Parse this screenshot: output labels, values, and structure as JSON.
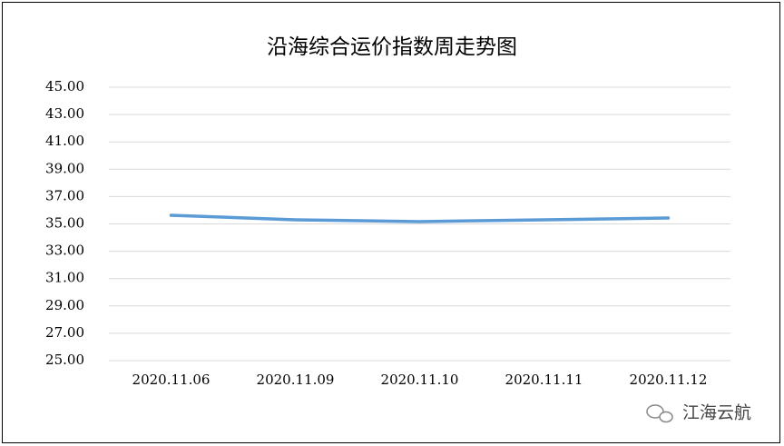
{
  "chart_data": {
    "type": "line",
    "title": "沿海综合运价指数周走势图",
    "categories": [
      "2020.11.06",
      "2020.11.09",
      "2020.11.10",
      "2020.11.11",
      "2020.11.12"
    ],
    "series": [
      {
        "color": "#5b9bd5",
        "values": [
          35.63,
          35.3,
          35.17,
          35.3,
          35.43
        ]
      }
    ],
    "ylim": [
      25,
      45
    ],
    "yticks": [
      {
        "value": 25,
        "label": "25.00"
      },
      {
        "value": 27,
        "label": "27.00"
      },
      {
        "value": 29,
        "label": "29.00"
      },
      {
        "value": 31,
        "label": "31.00"
      },
      {
        "value": 33,
        "label": "33.00"
      },
      {
        "value": 35,
        "label": "35.00"
      },
      {
        "value": 37,
        "label": "37.00"
      },
      {
        "value": 39,
        "label": "39.00"
      },
      {
        "value": 41,
        "label": "41.00"
      },
      {
        "value": 43,
        "label": "43.00"
      },
      {
        "value": 45,
        "label": "45.00"
      }
    ],
    "grid": true
  },
  "watermark": "江海云航"
}
